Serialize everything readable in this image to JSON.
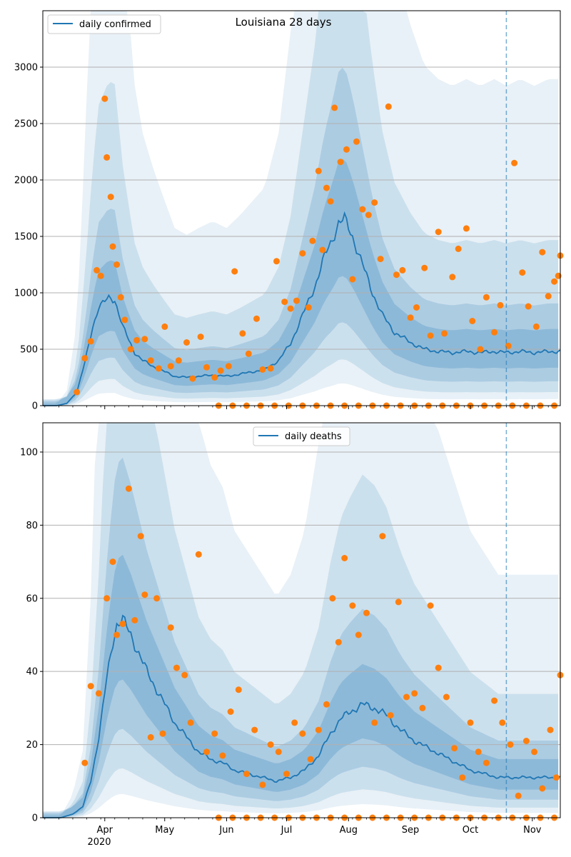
{
  "chart_data": [
    {
      "type": "line",
      "title": "Louisiana 28 days",
      "xlabel": "",
      "ylabel": "",
      "xlim": [
        "2020-03-01",
        "2020-11-15"
      ],
      "ylim": [
        0,
        3500
      ],
      "yticks": [
        0,
        500,
        1000,
        1500,
        2000,
        2500,
        3000
      ],
      "grid": "horizontal",
      "legend_position": "top-left",
      "forecast_start": "2020-10-19",
      "colors": {
        "line": "#1f77b4",
        "points": "#ff7f0e",
        "band": "#1f77b4",
        "vline": "#1f77b4"
      },
      "series": [
        {
          "name": "daily confirmed",
          "role": "model",
          "x": [
            "2020-03-01",
            "2020-03-08",
            "2020-03-13",
            "2020-03-18",
            "2020-03-22",
            "2020-03-26",
            "2020-03-29",
            "2020-04-01",
            "2020-04-03",
            "2020-04-06",
            "2020-04-08",
            "2020-04-10",
            "2020-04-13",
            "2020-04-16",
            "2020-04-20",
            "2020-04-25",
            "2020-05-01",
            "2020-05-06",
            "2020-05-12",
            "2020-05-18",
            "2020-05-25",
            "2020-06-01",
            "2020-06-08",
            "2020-06-14",
            "2020-06-20",
            "2020-06-27",
            "2020-07-03",
            "2020-07-09",
            "2020-07-15",
            "2020-07-20",
            "2020-07-24",
            "2020-07-27",
            "2020-07-30",
            "2020-08-03",
            "2020-08-08",
            "2020-08-13",
            "2020-08-18",
            "2020-08-24",
            "2020-09-01",
            "2020-09-08",
            "2020-09-15",
            "2020-09-22",
            "2020-09-29",
            "2020-10-06",
            "2020-10-13",
            "2020-10-19",
            "2020-10-26",
            "2020-11-02",
            "2020-11-09",
            "2020-11-15"
          ],
          "y": [
            0,
            0,
            20,
            120,
            380,
            700,
            880,
            920,
            950,
            940,
            820,
            700,
            580,
            470,
            400,
            350,
            300,
            260,
            250,
            260,
            270,
            260,
            280,
            300,
            320,
            400,
            550,
            800,
            1050,
            1320,
            1480,
            1620,
            1650,
            1500,
            1250,
            1000,
            800,
            650,
            560,
            500,
            480,
            470,
            480,
            470,
            480,
            470,
            480,
            470,
            480,
            480
          ]
        },
        {
          "name": "",
          "role": "observed",
          "x": [
            "2020-03-18",
            "2020-03-22",
            "2020-03-25",
            "2020-03-28",
            "2020-03-30",
            "2020-04-01",
            "2020-04-02",
            "2020-04-04",
            "2020-04-05",
            "2020-04-07",
            "2020-04-09",
            "2020-04-11",
            "2020-04-14",
            "2020-04-17",
            "2020-04-21",
            "2020-04-24",
            "2020-04-28",
            "2020-05-01",
            "2020-05-04",
            "2020-05-08",
            "2020-05-12",
            "2020-05-15",
            "2020-05-19",
            "2020-05-22",
            "2020-05-26",
            "2020-05-29",
            "2020-06-02",
            "2020-06-05",
            "2020-06-09",
            "2020-06-12",
            "2020-06-16",
            "2020-06-19",
            "2020-06-23",
            "2020-06-26",
            "2020-06-30",
            "2020-07-03",
            "2020-07-06",
            "2020-07-09",
            "2020-07-12",
            "2020-07-14",
            "2020-07-17",
            "2020-07-19",
            "2020-07-21",
            "2020-07-23",
            "2020-07-25",
            "2020-07-28",
            "2020-07-31",
            "2020-08-03",
            "2020-08-05",
            "2020-08-08",
            "2020-08-11",
            "2020-08-14",
            "2020-08-17",
            "2020-08-21",
            "2020-08-25",
            "2020-08-28",
            "2020-09-01",
            "2020-09-04",
            "2020-09-08",
            "2020-09-11",
            "2020-09-15",
            "2020-09-18",
            "2020-09-22",
            "2020-09-25",
            "2020-09-29",
            "2020-10-02",
            "2020-10-06",
            "2020-10-09",
            "2020-10-13",
            "2020-10-16",
            "2020-10-20",
            "2020-10-23",
            "2020-10-27",
            "2020-10-30",
            "2020-11-03",
            "2020-11-06",
            "2020-11-09",
            "2020-11-12",
            "2020-11-14",
            "2020-11-15"
          ],
          "y": [
            120,
            420,
            570,
            1200,
            1150,
            2720,
            2200,
            1850,
            1410,
            1250,
            960,
            760,
            500,
            580,
            590,
            400,
            330,
            700,
            350,
            400,
            560,
            240,
            610,
            340,
            250,
            310,
            350,
            1190,
            640,
            460,
            770,
            320,
            330,
            1280,
            920,
            860,
            930,
            1350,
            870,
            1460,
            2080,
            1380,
            1930,
            1810,
            2640,
            2160,
            2270,
            1120,
            2340,
            1740,
            1690,
            1800,
            1300,
            2650,
            1160,
            1200,
            780,
            870,
            1220,
            620,
            1540,
            640,
            1140,
            1390,
            1570,
            750,
            500,
            960,
            650,
            890,
            530,
            2150,
            1180,
            880,
            700,
            1360,
            970,
            1100,
            1150,
            1330
          ]
        }
      ]
    },
    {
      "type": "line",
      "title": "",
      "xlabel": "",
      "ylabel": "",
      "xlim": [
        "2020-03-01",
        "2020-11-15"
      ],
      "ylim": [
        0,
        108
      ],
      "yticks": [
        0,
        20,
        40,
        60,
        80,
        100
      ],
      "xticks": [
        "Apr",
        "May",
        "Jun",
        "Jul",
        "Aug",
        "Sep",
        "Oct",
        "Nov"
      ],
      "xtick_year": "2020",
      "grid": "horizontal",
      "legend_position": "top-center",
      "forecast_start": "2020-10-19",
      "colors": {
        "line": "#1f77b4",
        "points": "#ff7f0e",
        "band": "#1f77b4",
        "vline": "#1f77b4"
      },
      "series": [
        {
          "name": "daily deaths",
          "role": "model",
          "x": [
            "2020-03-01",
            "2020-03-10",
            "2020-03-16",
            "2020-03-21",
            "2020-03-25",
            "2020-03-29",
            "2020-04-02",
            "2020-04-05",
            "2020-04-07",
            "2020-04-10",
            "2020-04-14",
            "2020-04-18",
            "2020-04-22",
            "2020-04-26",
            "2020-05-01",
            "2020-05-06",
            "2020-05-12",
            "2020-05-18",
            "2020-05-24",
            "2020-05-30",
            "2020-06-05",
            "2020-06-12",
            "2020-06-19",
            "2020-06-26",
            "2020-07-03",
            "2020-07-10",
            "2020-07-17",
            "2020-07-23",
            "2020-07-28",
            "2020-08-02",
            "2020-08-08",
            "2020-08-14",
            "2020-08-20",
            "2020-08-27",
            "2020-09-03",
            "2020-09-10",
            "2020-09-17",
            "2020-09-24",
            "2020-10-01",
            "2020-10-08",
            "2020-10-15",
            "2020-10-22",
            "2020-10-29",
            "2020-11-05",
            "2020-11-15"
          ],
          "y": [
            0,
            0,
            1,
            3,
            10,
            22,
            38,
            48,
            53,
            54,
            50,
            45,
            40,
            36,
            31,
            26,
            22,
            18,
            16,
            15,
            13,
            12,
            11,
            10,
            11,
            13,
            17,
            23,
            27,
            29,
            31,
            30,
            28,
            24,
            21,
            19,
            17,
            15,
            13,
            12,
            11,
            11,
            11,
            11,
            11
          ]
        },
        {
          "name": "",
          "role": "observed",
          "x": [
            "2020-03-22",
            "2020-03-25",
            "2020-03-29",
            "2020-04-02",
            "2020-04-05",
            "2020-04-07",
            "2020-04-10",
            "2020-04-13",
            "2020-04-16",
            "2020-04-19",
            "2020-04-21",
            "2020-04-24",
            "2020-04-27",
            "2020-04-30",
            "2020-05-04",
            "2020-05-07",
            "2020-05-11",
            "2020-05-14",
            "2020-05-18",
            "2020-05-22",
            "2020-05-26",
            "2020-05-30",
            "2020-06-03",
            "2020-06-07",
            "2020-06-11",
            "2020-06-15",
            "2020-06-19",
            "2020-06-23",
            "2020-06-27",
            "2020-07-01",
            "2020-07-05",
            "2020-07-09",
            "2020-07-13",
            "2020-07-17",
            "2020-07-21",
            "2020-07-24",
            "2020-07-27",
            "2020-07-30",
            "2020-08-03",
            "2020-08-06",
            "2020-08-10",
            "2020-08-14",
            "2020-08-18",
            "2020-08-22",
            "2020-08-26",
            "2020-08-30",
            "2020-09-03",
            "2020-09-07",
            "2020-09-11",
            "2020-09-15",
            "2020-09-19",
            "2020-09-23",
            "2020-09-27",
            "2020-10-01",
            "2020-10-05",
            "2020-10-09",
            "2020-10-13",
            "2020-10-17",
            "2020-10-21",
            "2020-10-25",
            "2020-10-29",
            "2020-11-02",
            "2020-11-06",
            "2020-11-10",
            "2020-11-13",
            "2020-11-15"
          ],
          "y": [
            15,
            36,
            34,
            60,
            70,
            50,
            53,
            90,
            54,
            77,
            61,
            22,
            60,
            23,
            52,
            41,
            39,
            26,
            72,
            18,
            23,
            17,
            29,
            35,
            12,
            24,
            9,
            20,
            18,
            12,
            26,
            23,
            16,
            24,
            31,
            60,
            48,
            71,
            58,
            50,
            56,
            26,
            77,
            28,
            59,
            33,
            34,
            30,
            58,
            41,
            33,
            19,
            11,
            26,
            18,
            15,
            32,
            26,
            20,
            6,
            21,
            18,
            8,
            24,
            11,
            39
          ]
        }
      ]
    }
  ]
}
